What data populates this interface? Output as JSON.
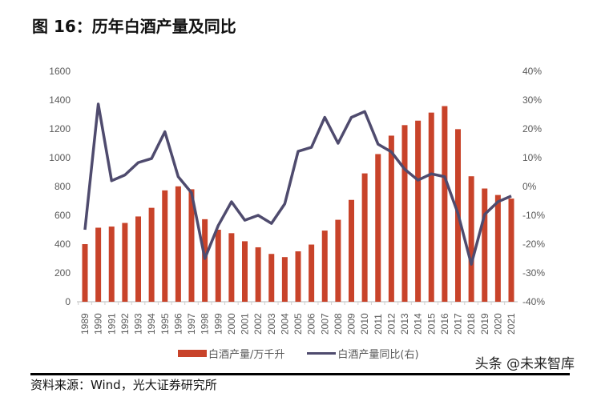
{
  "title": "图 16：历年白酒产量及同比",
  "chart_data": {
    "type": "bar+line",
    "categories": [
      "1989",
      "1990",
      "1991",
      "1992",
      "1993",
      "1994",
      "1995",
      "1996",
      "1997",
      "1998",
      "1999",
      "2000",
      "2001",
      "2002",
      "2003",
      "2004",
      "2005",
      "2006",
      "2007",
      "2008",
      "2009",
      "2010",
      "2011",
      "2012",
      "2013",
      "2014",
      "2015",
      "2016",
      "2017",
      "2018",
      "2019",
      "2020",
      "2021"
    ],
    "series": [
      {
        "name": "白酒产量/万千升",
        "type": "bar",
        "axis": "left",
        "color": "#C8432A",
        "values": [
          400,
          514,
          522,
          547,
          592,
          652,
          773,
          801,
          781,
          573,
          500,
          476,
          420,
          378,
          332,
          310,
          350,
          397,
          494,
          569,
          707,
          891,
          1025,
          1153,
          1226,
          1257,
          1313,
          1358,
          1198,
          871,
          786,
          741,
          716
        ]
      },
      {
        "name": "白酒产量同比(右)",
        "type": "line",
        "axis": "right",
        "color": "#4F4B6E",
        "values": [
          -15,
          28.6,
          2,
          4,
          8.3,
          9.7,
          19,
          3.4,
          -2.2,
          -25,
          -13.6,
          -5.3,
          -11.7,
          -10,
          -12.8,
          -6,
          12.2,
          13.6,
          24,
          15,
          24,
          26,
          14.7,
          12,
          6,
          2.2,
          4.4,
          3.4,
          -9.4,
          -27,
          -9.7,
          -5.3,
          -3.3
        ]
      }
    ],
    "ylim_left": [
      0,
      1600
    ],
    "yticks_left": [
      "0",
      "200",
      "400",
      "600",
      "800",
      "1000",
      "1200",
      "1400",
      "1600"
    ],
    "ylim_right": [
      -40,
      40
    ],
    "yticks_right": [
      "-40%",
      "-30%",
      "-20%",
      "-10%",
      "0%",
      "10%",
      "20%",
      "30%",
      "40%"
    ],
    "grid": false,
    "legend": "bottom"
  },
  "watermark": "头条 @未来智库",
  "source": "资料来源：Wind，光大证券研究所"
}
